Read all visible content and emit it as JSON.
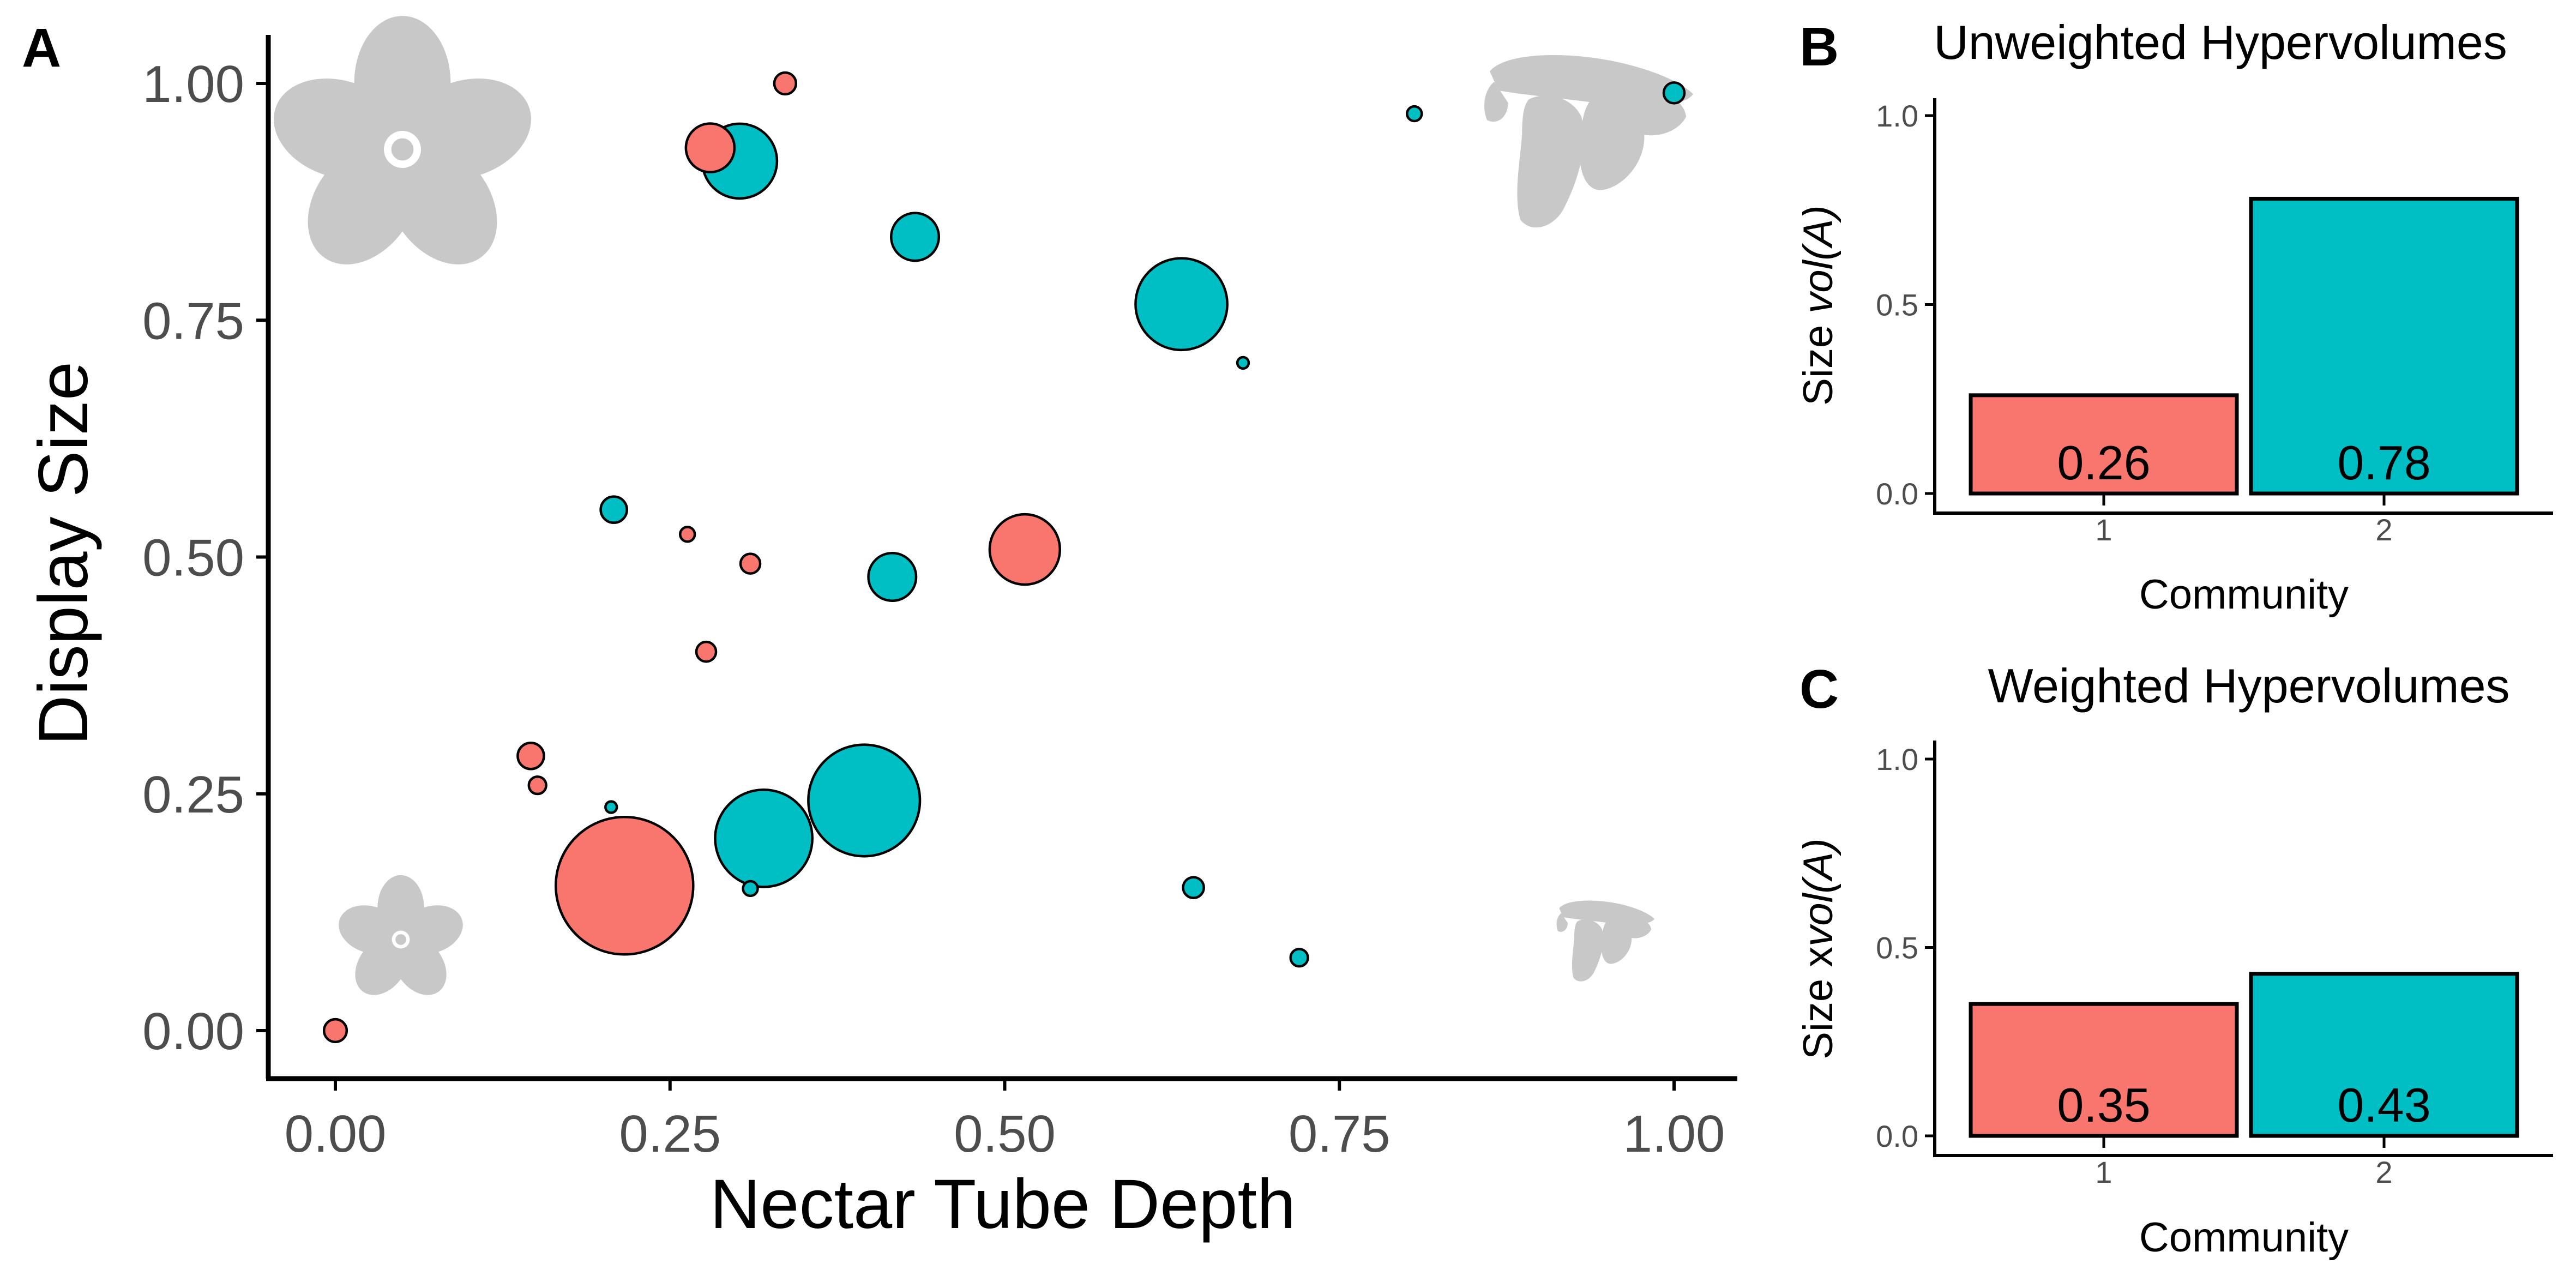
{
  "colors": {
    "community1": "#F8766D",
    "community2": "#00BFC4",
    "silhouette": "#C8C8C8",
    "axis": "#000000",
    "tick_text": "#4D4D4D",
    "title_text": "#000000"
  },
  "icons": {
    "top_left": "large-flower-silhouette-icon",
    "top_right": "large-long-tubed-flower-silhouette-icon",
    "bottom_left": "small-flower-silhouette-icon",
    "bottom_right": "small-long-tubed-flower-silhouette-icon"
  },
  "chart_data": [
    {
      "panel_label": "A",
      "type": "scatter",
      "title": "",
      "xlabel": "Nectar Tube Depth",
      "ylabel": "Display Size",
      "xlim": [
        0,
        1
      ],
      "ylim": [
        0,
        1
      ],
      "xticks": [
        "0.00",
        "0.25",
        "0.50",
        "0.75",
        "1.00"
      ],
      "yticks": [
        "0.00",
        "0.25",
        "0.50",
        "0.75",
        "1.00"
      ],
      "grid": false,
      "legend": "none",
      "series": [
        {
          "community": 1,
          "points": [
            {
              "x": 0.0,
              "y": 0.0,
              "size": 1.2
            },
            {
              "x": 0.146,
              "y": 0.29,
              "size": 1.6
            },
            {
              "x": 0.151,
              "y": 0.259,
              "size": 0.7
            },
            {
              "x": 0.216,
              "y": 0.153,
              "size": 44
            },
            {
              "x": 0.263,
              "y": 0.524,
              "size": 0.5
            },
            {
              "x": 0.277,
              "y": 0.4,
              "size": 0.9
            },
            {
              "x": 0.28,
              "y": 0.932,
              "size": 5.5
            },
            {
              "x": 0.31,
              "y": 0.493,
              "size": 0.9
            },
            {
              "x": 0.336,
              "y": 1.0,
              "size": 1.1
            },
            {
              "x": 0.515,
              "y": 0.508,
              "size": 11.5
            }
          ]
        },
        {
          "community": 2,
          "points": [
            {
              "x": 0.206,
              "y": 0.236,
              "size": 0.3
            },
            {
              "x": 0.208,
              "y": 0.55,
              "size": 1.6
            },
            {
              "x": 0.31,
              "y": 0.15,
              "size": 0.5
            },
            {
              "x": 0.302,
              "y": 0.918,
              "size": 13
            },
            {
              "x": 0.32,
              "y": 0.203,
              "size": 22
            },
            {
              "x": 0.395,
              "y": 0.243,
              "size": 29
            },
            {
              "x": 0.416,
              "y": 0.479,
              "size": 5.3
            },
            {
              "x": 0.433,
              "y": 0.838,
              "size": 5.3
            },
            {
              "x": 0.632,
              "y": 0.767,
              "size": 19.6
            },
            {
              "x": 0.641,
              "y": 0.151,
              "size": 1
            },
            {
              "x": 0.678,
              "y": 0.705,
              "size": 0.3
            },
            {
              "x": 0.72,
              "y": 0.077,
              "size": 0.7
            },
            {
              "x": 0.806,
              "y": 0.968,
              "size": 0.5
            },
            {
              "x": 1.0,
              "y": 0.99,
              "size": 1
            }
          ]
        }
      ]
    },
    {
      "panel_label": "B",
      "type": "bar",
      "title": "Unweighted Hypervolumes",
      "xlabel": "Community",
      "ylabel_prefix": "Size ",
      "ylabel_italic": "vol(A)",
      "categories": [
        "1",
        "2"
      ],
      "values": [
        0.26,
        0.78
      ],
      "value_labels": [
        "0.26",
        "0.78"
      ],
      "ylim": [
        0,
        1.0
      ],
      "yticks": [
        "0.0",
        "0.5",
        "1.0"
      ],
      "grid": false,
      "legend": "none"
    },
    {
      "panel_label": "C",
      "type": "bar",
      "title": "Weighted Hypervolumes",
      "xlabel": "Community",
      "ylabel_prefix": "Size x",
      "ylabel_italic": "vol(A)",
      "categories": [
        "1",
        "2"
      ],
      "values": [
        0.35,
        0.43
      ],
      "value_labels": [
        "0.35",
        "0.43"
      ],
      "ylim": [
        0,
        1.0
      ],
      "yticks": [
        "0.0",
        "0.5",
        "1.0"
      ],
      "grid": false,
      "legend": "none"
    }
  ]
}
